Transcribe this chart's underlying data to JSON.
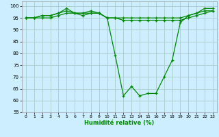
{
  "x": [
    0,
    1,
    2,
    3,
    4,
    5,
    6,
    7,
    8,
    9,
    10,
    11,
    12,
    13,
    14,
    15,
    16,
    17,
    18,
    19,
    20,
    21,
    22,
    23
  ],
  "line1": [
    95,
    95,
    96,
    96,
    97,
    98,
    97,
    97,
    97,
    97,
    95,
    79,
    62,
    66,
    62,
    63,
    63,
    70,
    77,
    93,
    96,
    97,
    98,
    98
  ],
  "line2": [
    95,
    95,
    96,
    96,
    97,
    99,
    97,
    97,
    98,
    97,
    95,
    95,
    95,
    95,
    95,
    95,
    95,
    95,
    95,
    95,
    96,
    97,
    99,
    99
  ],
  "line3": [
    95,
    95,
    95,
    95,
    96,
    97,
    97,
    96,
    97,
    97,
    95,
    95,
    94,
    94,
    94,
    94,
    94,
    94,
    94,
    94,
    95,
    96,
    97,
    98
  ],
  "bg_color": "#cceeff",
  "grid_color": "#aacccc",
  "line_color": "#008800",
  "xlabel": "Humidité relative (%)",
  "ylim": [
    55,
    102
  ],
  "xlim": [
    -0.5,
    23.5
  ],
  "yticks": [
    55,
    60,
    65,
    70,
    75,
    80,
    85,
    90,
    95,
    100
  ],
  "xticks": [
    0,
    1,
    2,
    3,
    4,
    5,
    6,
    7,
    8,
    9,
    10,
    11,
    12,
    13,
    14,
    15,
    16,
    17,
    18,
    19,
    20,
    21,
    22,
    23
  ]
}
